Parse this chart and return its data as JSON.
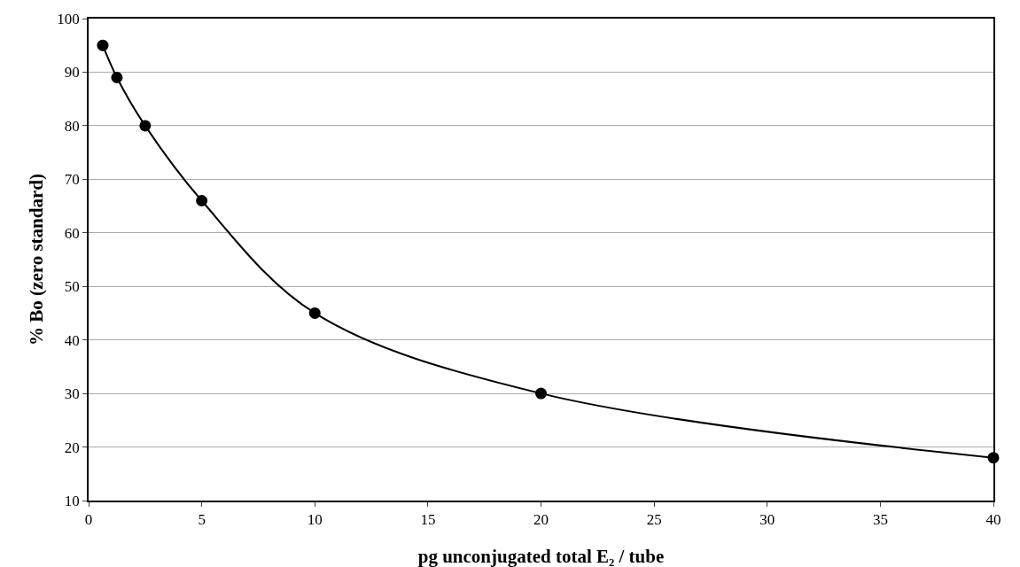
{
  "chart_data": {
    "type": "line",
    "xlabel": "pg unconjugated total E₂ / tube",
    "ylabel": "% Bo (zero standard)",
    "x": [
      0.625,
      1.25,
      2.5,
      5,
      10,
      20,
      40
    ],
    "series": [
      {
        "color": "#000000",
        "values": [
          95,
          89,
          80,
          66,
          45,
          30,
          18
        ]
      }
    ],
    "xlim": [
      0,
      40
    ],
    "xticks": [
      0,
      5,
      10,
      15,
      20,
      25,
      30,
      35,
      40
    ],
    "ylim": [
      10,
      100
    ],
    "yticks": [
      10,
      20,
      30,
      40,
      50,
      60,
      70,
      80,
      90,
      100
    ],
    "grid": "y",
    "marker": "circle",
    "line_style": "solid",
    "legend": false
  }
}
